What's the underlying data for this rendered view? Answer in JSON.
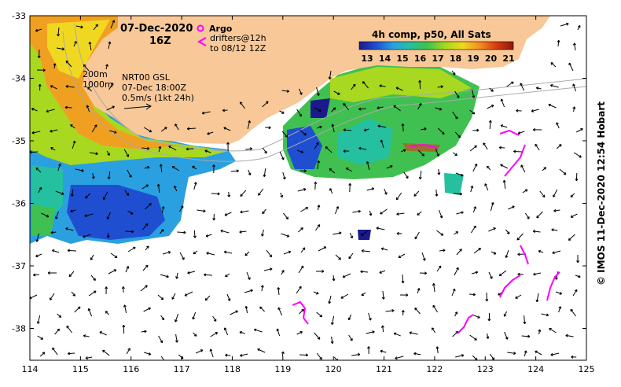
{
  "header": {
    "date": "07-Dec-2020",
    "time": "16Z"
  },
  "argo_label": "Argo",
  "drifters": {
    "line1": "drifters@12h",
    "line2": "to 08/12 12Z"
  },
  "colorbar": {
    "title": "4h comp, p50, All Sats",
    "ticks": [
      "13",
      "14",
      "15",
      "16",
      "17",
      "18",
      "19",
      "20",
      "21"
    ],
    "colors": [
      "#1a1a8c",
      "#1f4fd0",
      "#2aa0e0",
      "#25c0a0",
      "#40c050",
      "#a8d820",
      "#f0d820",
      "#f09020",
      "#d83a10",
      "#8a1a10"
    ]
  },
  "contours": {
    "c200": "200m",
    "c1000": "1000m"
  },
  "velocity": {
    "line1": "NRT00 GSL",
    "line2": "07-Dec 18:00Z",
    "line3": "0.5m/s (1kt 24h)"
  },
  "axes": {
    "x_ticks": [
      "114",
      "115",
      "116",
      "117",
      "118",
      "119",
      "120",
      "121",
      "122",
      "123",
      "124",
      "125"
    ],
    "y_ticks": [
      "-33",
      "-34",
      "-35",
      "-36",
      "-37",
      "-38"
    ]
  },
  "credit": "© IMOS 11-Dec-2020 12:54 Hobart",
  "colors": {
    "land": "#f8c898",
    "drifter": "#ff00ff",
    "arrow": "#000000",
    "contour": "#aaaaaa"
  }
}
